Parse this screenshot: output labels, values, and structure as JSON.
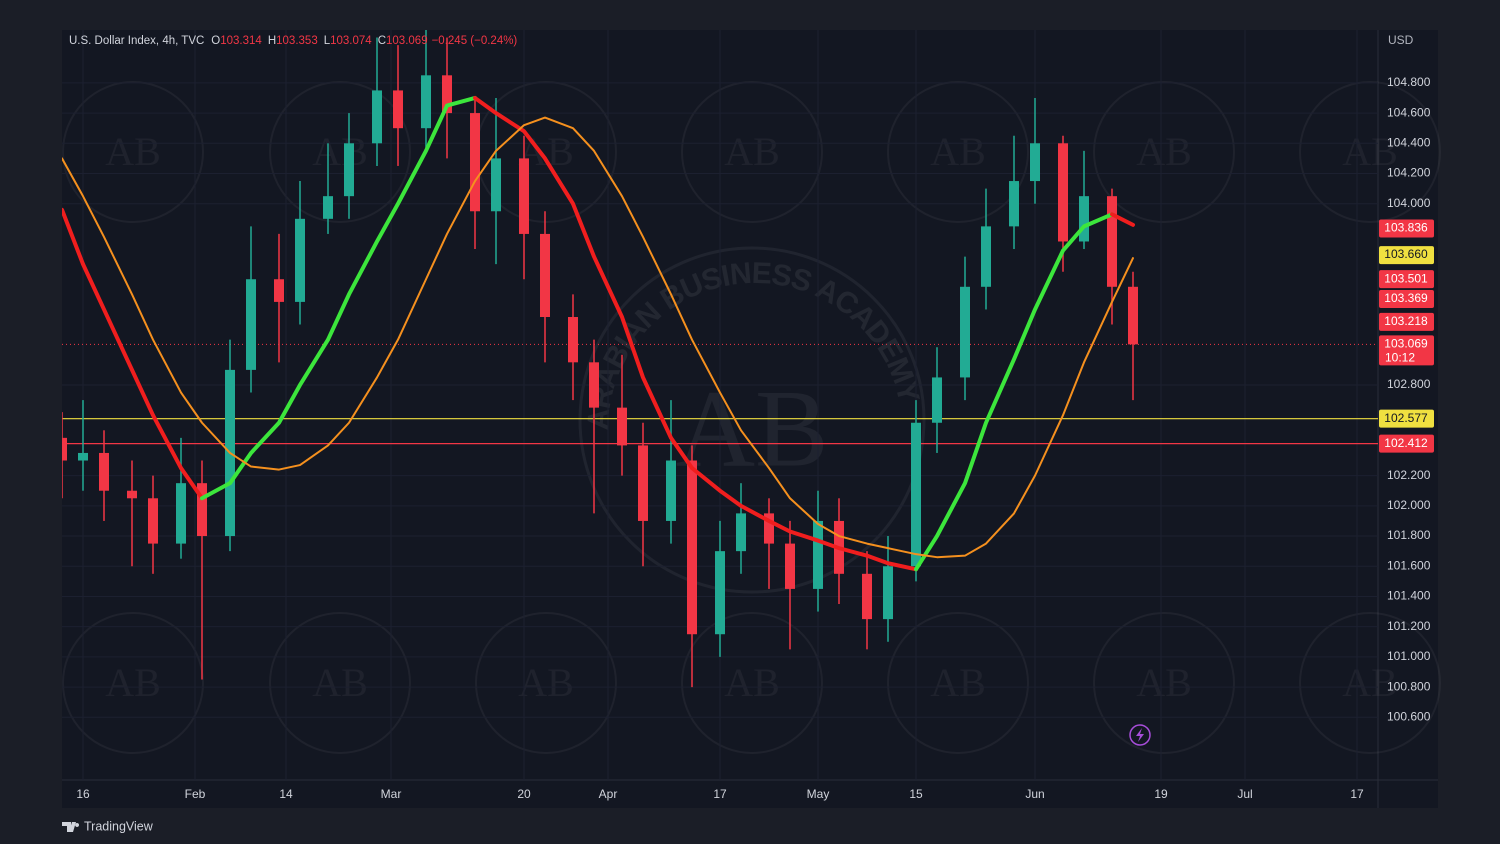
{
  "header": {
    "symbol": "U.S. Dollar Index, 4h, TVC",
    "ohlc": [
      {
        "key": "O",
        "value": 103.314
      },
      {
        "key": "H",
        "value": 103.353
      },
      {
        "key": "L",
        "value": 103.074
      },
      {
        "key": "C",
        "value": 103.069
      }
    ],
    "change": "−0.245 (−0.24%)"
  },
  "chart_data": {
    "type": "candlestick",
    "currency": "USD",
    "x": [
      "01-13",
      "01-16",
      "01-19",
      "01-23",
      "01-26",
      "01-30",
      "02-02",
      "02-06",
      "02-09",
      "02-13",
      "02-16",
      "02-20",
      "02-23",
      "02-27",
      "03-02",
      "03-06",
      "03-09",
      "03-13",
      "03-16",
      "03-20",
      "03-23",
      "03-27",
      "03-30",
      "04-03",
      "04-06",
      "04-10",
      "04-13",
      "04-17",
      "04-20",
      "04-24",
      "04-27",
      "05-01",
      "05-04",
      "05-08",
      "05-11",
      "05-15",
      "05-18",
      "05-22",
      "05-25",
      "05-29",
      "06-01",
      "06-05",
      "06-08",
      "06-12",
      "06-15"
    ],
    "open": [
      102.45,
      102.3,
      102.35,
      102.1,
      102.05,
      101.75,
      102.15,
      101.8,
      102.9,
      103.5,
      103.35,
      103.9,
      104.05,
      104.4,
      104.75,
      104.5,
      104.85,
      104.6,
      103.95,
      104.3,
      103.8,
      103.25,
      102.95,
      102.65,
      102.4,
      101.9,
      102.3,
      101.15,
      101.7,
      101.95,
      101.75,
      101.45,
      101.9,
      101.55,
      101.25,
      101.6,
      102.55,
      102.85,
      103.45,
      103.85,
      104.15,
      104.4,
      103.75,
      104.05,
      103.45
    ],
    "high": [
      102.62,
      102.7,
      102.5,
      102.3,
      102.2,
      102.45,
      102.3,
      103.1,
      103.85,
      103.8,
      104.15,
      104.4,
      104.6,
      105.1,
      105.05,
      105.3,
      105.1,
      104.7,
      104.7,
      104.45,
      103.95,
      103.4,
      103.1,
      103.0,
      102.55,
      102.7,
      102.4,
      101.9,
      102.15,
      102.05,
      101.9,
      102.1,
      102.05,
      101.7,
      101.8,
      102.7,
      103.05,
      103.65,
      104.1,
      104.45,
      104.7,
      104.45,
      104.35,
      104.1,
      103.55
    ],
    "low": [
      102.05,
      102.1,
      101.9,
      101.6,
      101.55,
      101.65,
      100.85,
      101.7,
      102.75,
      102.95,
      103.2,
      103.8,
      103.9,
      104.25,
      104.25,
      104.35,
      104.3,
      103.7,
      103.6,
      103.5,
      102.95,
      102.7,
      101.95,
      102.2,
      101.6,
      101.75,
      100.8,
      101.0,
      101.55,
      101.45,
      101.05,
      101.3,
      101.35,
      101.05,
      101.1,
      101.5,
      102.35,
      102.7,
      103.3,
      103.7,
      104.0,
      103.55,
      103.7,
      103.2,
      102.7
    ],
    "close": [
      102.3,
      102.35,
      102.1,
      102.05,
      101.75,
      102.15,
      101.8,
      102.9,
      103.5,
      103.35,
      103.9,
      104.05,
      104.4,
      104.75,
      104.5,
      104.85,
      104.6,
      103.95,
      104.3,
      103.8,
      103.25,
      102.95,
      102.65,
      102.4,
      101.9,
      102.3,
      101.15,
      101.7,
      101.95,
      101.75,
      101.45,
      101.9,
      101.55,
      101.25,
      101.6,
      102.55,
      102.85,
      103.45,
      103.85,
      104.15,
      104.4,
      103.75,
      104.05,
      103.45,
      103.069
    ],
    "up_color": "#22ab94",
    "down_color": "#f23645",
    "xlim": [
      "01-13",
      "07-20"
    ],
    "xticks": [
      {
        "value": "01-16",
        "label": "16"
      },
      {
        "value": "02-01",
        "label": "Feb"
      },
      {
        "value": "02-14",
        "label": "14"
      },
      {
        "value": "03-01",
        "label": "Mar"
      },
      {
        "value": "03-20",
        "label": "20"
      },
      {
        "value": "04-01",
        "label": "Apr"
      },
      {
        "value": "04-17",
        "label": "17"
      },
      {
        "value": "05-01",
        "label": "May"
      },
      {
        "value": "05-15",
        "label": "15"
      },
      {
        "value": "06-01",
        "label": "Jun"
      },
      {
        "value": "06-19",
        "label": "19"
      },
      {
        "value": "07-01",
        "label": "Jul"
      },
      {
        "value": "07-17",
        "label": "17"
      }
    ],
    "ylim": [
      100.185,
      105.15
    ],
    "yticks": [
      {
        "value": 100.6,
        "label": "100.600"
      },
      {
        "value": 100.8,
        "label": "100.800"
      },
      {
        "value": 101.0,
        "label": "101.000"
      },
      {
        "value": 101.2,
        "label": "101.200"
      },
      {
        "value": 101.4,
        "label": "101.400"
      },
      {
        "value": 101.6,
        "label": "101.600"
      },
      {
        "value": 101.8,
        "label": "101.800"
      },
      {
        "value": 102.0,
        "label": "102.000"
      },
      {
        "value": 102.2,
        "label": "102.200"
      },
      {
        "value": 102.8,
        "label": "102.800"
      },
      {
        "value": 104.0,
        "label": "104.000"
      },
      {
        "value": 104.2,
        "label": "104.200"
      },
      {
        "value": 104.4,
        "label": "104.400"
      },
      {
        "value": 104.6,
        "label": "104.600"
      },
      {
        "value": 104.8,
        "label": "104.800"
      }
    ],
    "grid": true,
    "indicators": [
      {
        "type": "line",
        "up_color": "#3ce63c",
        "down_color": "#f01e1e",
        "width": 4,
        "values": [
          103.96,
          103.6,
          103.3,
          102.9,
          102.6,
          102.25,
          102.05,
          102.15,
          102.35,
          102.55,
          102.8,
          103.1,
          103.4,
          103.75,
          104.0,
          104.35,
          104.65,
          104.7,
          104.6,
          104.48,
          104.3,
          104.0,
          103.65,
          103.25,
          102.85,
          102.45,
          102.25,
          102.1,
          102.0,
          101.9,
          101.83,
          101.77,
          101.72,
          101.67,
          101.62,
          101.58,
          101.8,
          102.15,
          102.55,
          102.97,
          103.3,
          103.69,
          103.85,
          103.93,
          103.86
        ]
      },
      {
        "type": "line",
        "color": "#f5901e",
        "width": 2,
        "values": [
          104.3,
          104.05,
          103.78,
          103.4,
          103.1,
          102.75,
          102.55,
          102.35,
          102.26,
          102.24,
          102.27,
          102.4,
          102.55,
          102.85,
          103.1,
          103.5,
          103.8,
          104.15,
          104.35,
          104.52,
          104.57,
          104.5,
          104.35,
          104.05,
          103.78,
          103.4,
          103.1,
          102.75,
          102.5,
          102.25,
          102.05,
          101.88,
          101.8,
          101.75,
          101.72,
          101.68,
          101.66,
          101.67,
          101.75,
          101.95,
          102.2,
          102.6,
          102.95,
          103.35,
          103.64
        ]
      }
    ],
    "levels": [
      {
        "value": 102.577,
        "color": "#f0e040"
      },
      {
        "value": 102.412,
        "color": "#f23645"
      }
    ],
    "price_tags": [
      {
        "value": 103.836,
        "color": "#f23645"
      },
      {
        "value": 103.66,
        "label": "103.660",
        "color": "#f0e040"
      },
      {
        "value": 103.501,
        "color": "#f23645"
      },
      {
        "value": 103.369,
        "color": "#f23645"
      },
      {
        "value": 103.218,
        "color": "#f23645"
      }
    ],
    "countdown": "10:12"
  },
  "watermark": {
    "initials": "AB",
    "name": "ARABIAN BUSINESS ACADEMY"
  },
  "branding": "TradingView"
}
